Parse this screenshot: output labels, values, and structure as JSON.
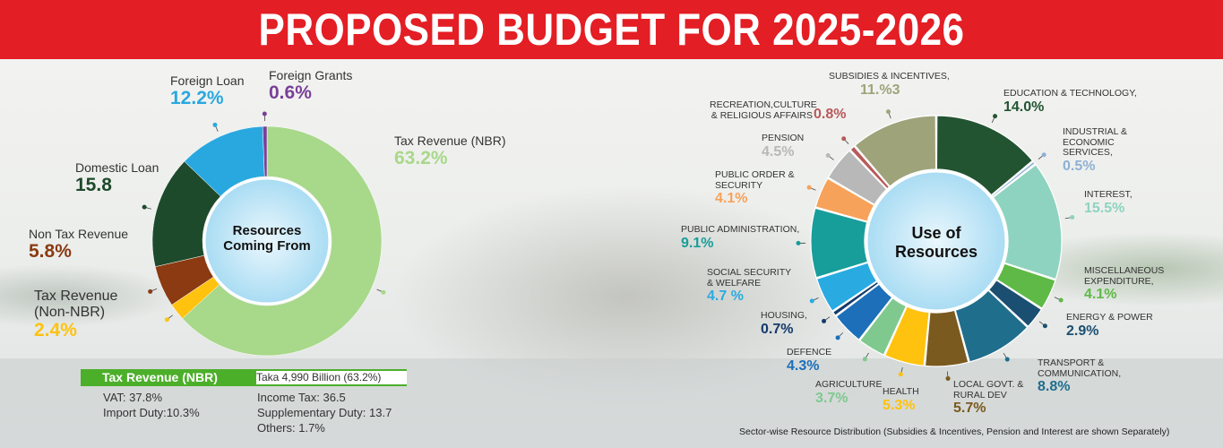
{
  "title": "PROPOSED BUDGET FOR 2025-2026",
  "chart_data": [
    {
      "type": "pie",
      "title": "",
      "center_label": [
        "Resources",
        "Coming From"
      ],
      "slices": [
        {
          "name": "Tax Revenue (NBR)",
          "label": "63.2%",
          "value": 63.2,
          "color": "#a8d88a"
        },
        {
          "name": "Tax Revenue (Non-NBR)",
          "label": "2.4%",
          "value": 2.4,
          "color": "#ffc20e"
        },
        {
          "name": "Non Tax Revenue",
          "label": "5.8%",
          "value": 5.8,
          "color": "#8b3a12"
        },
        {
          "name": "Domestic Loan",
          "label": "15.8",
          "value": 15.8,
          "color": "#1e4a2c"
        },
        {
          "name": "Foreign Loan",
          "label": "12.2%",
          "value": 12.2,
          "color": "#29a8e0"
        },
        {
          "name": "Foreign Grants",
          "label": "0.6%",
          "value": 0.6,
          "color": "#7a3f98"
        }
      ]
    },
    {
      "type": "pie",
      "title": "",
      "center_label": [
        "Use of",
        "Resources"
      ],
      "slices": [
        {
          "name": "EDUCATION & TECHNOLOGY,",
          "label": "14.0%",
          "value": 14.0,
          "color": "#235432"
        },
        {
          "name": "INDUSTRIAL & ECONOMIC SERVICES,",
          "label": "0.5%",
          "value": 0.5,
          "color": "#8fb0d4"
        },
        {
          "name": "INTEREST,",
          "label": "15.5%",
          "value": 15.5,
          "color": "#8ed3bf"
        },
        {
          "name": "MISCELLANEOUS EXPENDITURE,",
          "label": "4.1%",
          "value": 4.1,
          "color": "#5fb946"
        },
        {
          "name": "ENERGY & POWER",
          "label": "2.9%",
          "value": 2.9,
          "color": "#1b4f72"
        },
        {
          "name": "TRANSPORT & COMMUNICATION,",
          "label": "8.8%",
          "value": 8.8,
          "color": "#1f6e8c"
        },
        {
          "name": "LOCAL GOVT. & RURAL DEV",
          "label": "5.7%",
          "value": 5.7,
          "color": "#7a5a1e"
        },
        {
          "name": "HEALTH",
          "label": "5.3%",
          "value": 5.3,
          "color": "#ffc20e"
        },
        {
          "name": "AGRICULTURE",
          "label": "3.7%",
          "value": 3.7,
          "color": "#7fc98f"
        },
        {
          "name": "DEFENCE",
          "label": "4.3%",
          "value": 4.3,
          "color": "#1c6fb8"
        },
        {
          "name": "HOUSING,",
          "label": "0.7%",
          "value": 0.7,
          "color": "#143a6b"
        },
        {
          "name": "SOCIAL SECURITY & WELFARE",
          "label": "4.7 %",
          "value": 4.7,
          "color": "#29abe2"
        },
        {
          "name": "PUBLIC ADMINISTRATION,",
          "label": "9.1%",
          "value": 9.1,
          "color": "#179e9a"
        },
        {
          "name": "PUBLIC ORDER & SECURITY",
          "label": "4.1%",
          "value": 4.1,
          "color": "#f7a25a"
        },
        {
          "name": "PENSION",
          "label": "4.5%",
          "value": 4.5,
          "color": "#b8b8b8"
        },
        {
          "name": "RECREATION,CULTURE & RELIGIOUS AFFAIRS",
          "label": "0.8%",
          "value": 0.8,
          "color": "#b85a5a"
        },
        {
          "name": "SUBSIDIES & INCENTIVES,",
          "label": "11.%3",
          "value": 11.3,
          "color": "#9fa37a"
        }
      ]
    }
  ],
  "tax_bar": {
    "label": "Tax Revenue (NBR)",
    "value": "Taka 4,990 Billion (63.2%)"
  },
  "tax_breakdown": {
    "vat": "VAT: 37.8%",
    "import_duty": "Import Duty:10.3%",
    "income_tax": "Income Tax: 36.5",
    "supplementary": "Supplementary Duty: 13.7",
    "others": "Others: 1.7%"
  },
  "footnote": "Sector-wise Resource Distribution (Subsidies & Incentives, Pension and Interest are shown Separately)"
}
